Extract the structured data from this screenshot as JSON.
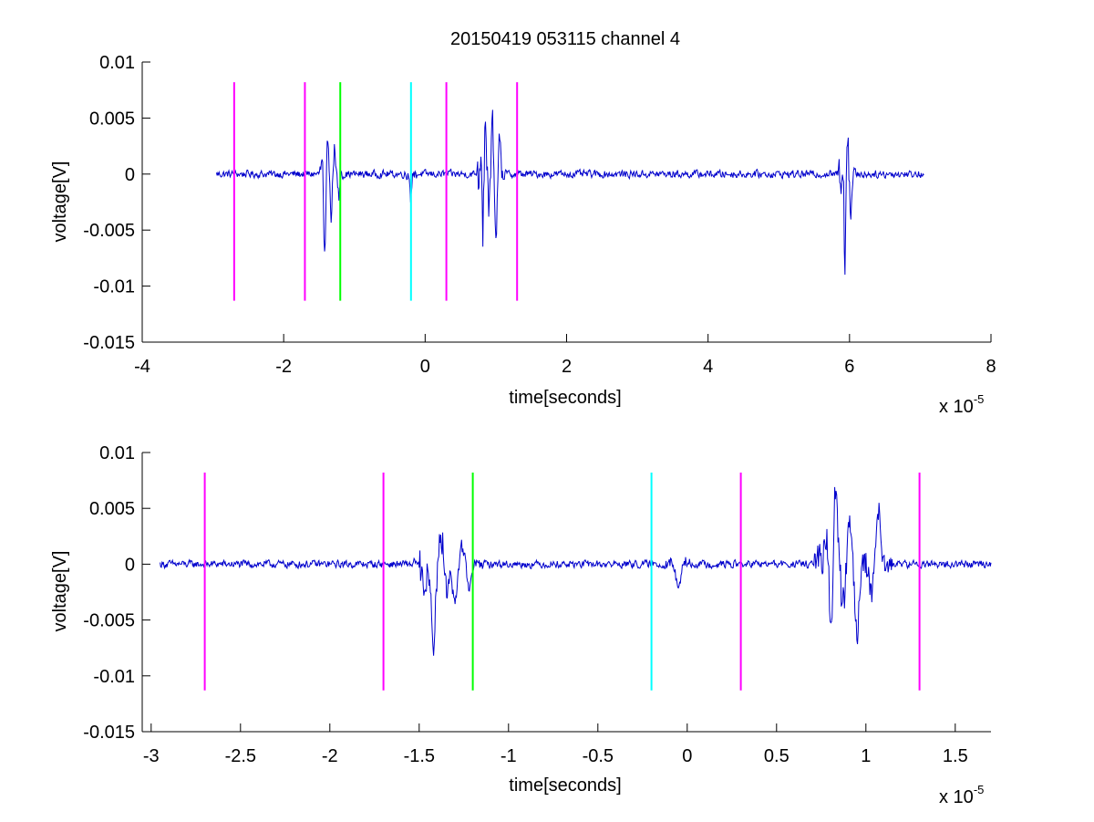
{
  "figure": {
    "title": "20150419 053115 channel 4"
  },
  "chart_data": [
    {
      "type": "line",
      "xlabel": "time[seconds]",
      "ylabel": "voltage[V]",
      "x_multiplier_label": "x 10",
      "x_multiplier_exponent": "-5",
      "xlim": [
        -4,
        8
      ],
      "ylim": [
        -0.015,
        0.01
      ],
      "xticks": [
        -4,
        -2,
        0,
        2,
        4,
        6,
        8
      ],
      "xtick_labels": [
        "-4",
        "-2",
        "0",
        "2",
        "4",
        "6",
        "8"
      ],
      "yticks": [
        0.01,
        0.005,
        0,
        -0.005,
        -0.01,
        -0.015
      ],
      "ytick_labels": [
        "0.01",
        "0.005",
        "0",
        "-0.005",
        "-0.01",
        "-0.015"
      ],
      "grid": false,
      "series": [
        {
          "color": "#0000cc",
          "x_range": [
            -2.95,
            7.05
          ],
          "baseline_noise": 0.0003,
          "bursts": [
            {
              "t": -1.42,
              "amp": -0.0068
            },
            {
              "t": -1.38,
              "amp": 0.0025
            },
            {
              "t": -1.33,
              "amp": -0.0045
            },
            {
              "t": -1.28,
              "amp": 0.0022
            },
            {
              "t": -1.22,
              "amp": -0.002
            },
            {
              "t": -0.2,
              "amp": -0.0022
            },
            {
              "t": 0.8,
              "amp": 0.0075
            },
            {
              "t": 0.81,
              "amp": -0.0096
            },
            {
              "t": 0.85,
              "amp": 0.004
            },
            {
              "t": 0.9,
              "amp": -0.0035
            },
            {
              "t": 0.95,
              "amp": 0.0048
            },
            {
              "t": 1.0,
              "amp": -0.0065
            },
            {
              "t": 1.05,
              "amp": 0.0035
            },
            {
              "t": 5.92,
              "amp": 0.0045
            },
            {
              "t": 5.93,
              "amp": -0.0102
            },
            {
              "t": 5.97,
              "amp": 0.003
            },
            {
              "t": 6.02,
              "amp": -0.0035
            }
          ]
        }
      ],
      "markers": [
        {
          "x": -2.7,
          "color": "#ff00ff"
        },
        {
          "x": -1.7,
          "color": "#ff00ff"
        },
        {
          "x": -1.2,
          "color": "#00ff00"
        },
        {
          "x": -0.2,
          "color": "#00ffff"
        },
        {
          "x": 0.3,
          "color": "#ff00ff"
        },
        {
          "x": 1.3,
          "color": "#ff00ff"
        }
      ],
      "marker_range": [
        -0.0113,
        0.0082
      ]
    },
    {
      "type": "line",
      "xlabel": "time[seconds]",
      "ylabel": "voltage[V]",
      "x_multiplier_label": "x 10",
      "x_multiplier_exponent": "-5",
      "xlim": [
        -3.05,
        1.7
      ],
      "ylim": [
        -0.015,
        0.01
      ],
      "xticks": [
        -3,
        -2.5,
        -2,
        -1.5,
        -1,
        -0.5,
        0,
        0.5,
        1,
        1.5
      ],
      "xtick_labels": [
        "-3",
        "-2.5",
        "-2",
        "-1.5",
        "-1",
        "-0.5",
        "0",
        "0.5",
        "1",
        "1.5"
      ],
      "yticks": [
        0.01,
        0.005,
        0,
        -0.005,
        -0.01,
        -0.015
      ],
      "ytick_labels": [
        "0.01",
        "0.005",
        "0",
        "-0.005",
        "-0.01",
        "-0.015"
      ],
      "grid": false,
      "series": [
        {
          "color": "#0000cc",
          "x_range": [
            -2.95,
            1.7
          ],
          "baseline_noise": 0.0003,
          "bursts": [
            {
              "t": -1.47,
              "amp": -0.002
            },
            {
              "t": -1.42,
              "amp": -0.007
            },
            {
              "t": -1.38,
              "amp": 0.0025
            },
            {
              "t": -1.34,
              "amp": -0.002
            },
            {
              "t": -1.3,
              "amp": -0.0033
            },
            {
              "t": -1.26,
              "amp": 0.0018
            },
            {
              "t": -1.22,
              "amp": -0.002
            },
            {
              "t": -0.05,
              "amp": -0.0023
            },
            {
              "t": 0.79,
              "amp": 0.0075
            },
            {
              "t": 0.8,
              "amp": -0.0098
            },
            {
              "t": 0.83,
              "amp": 0.007
            },
            {
              "t": 0.87,
              "amp": -0.004
            },
            {
              "t": 0.91,
              "amp": 0.0035
            },
            {
              "t": 0.95,
              "amp": -0.0065
            },
            {
              "t": 1.03,
              "amp": -0.0025
            },
            {
              "t": 1.07,
              "amp": 0.0048
            }
          ]
        }
      ],
      "markers": [
        {
          "x": -2.7,
          "color": "#ff00ff"
        },
        {
          "x": -1.7,
          "color": "#ff00ff"
        },
        {
          "x": -1.2,
          "color": "#00ff00"
        },
        {
          "x": -0.2,
          "color": "#00ffff"
        },
        {
          "x": 0.3,
          "color": "#ff00ff"
        },
        {
          "x": 1.3,
          "color": "#ff00ff"
        }
      ],
      "marker_range": [
        -0.0113,
        0.0082
      ]
    }
  ]
}
